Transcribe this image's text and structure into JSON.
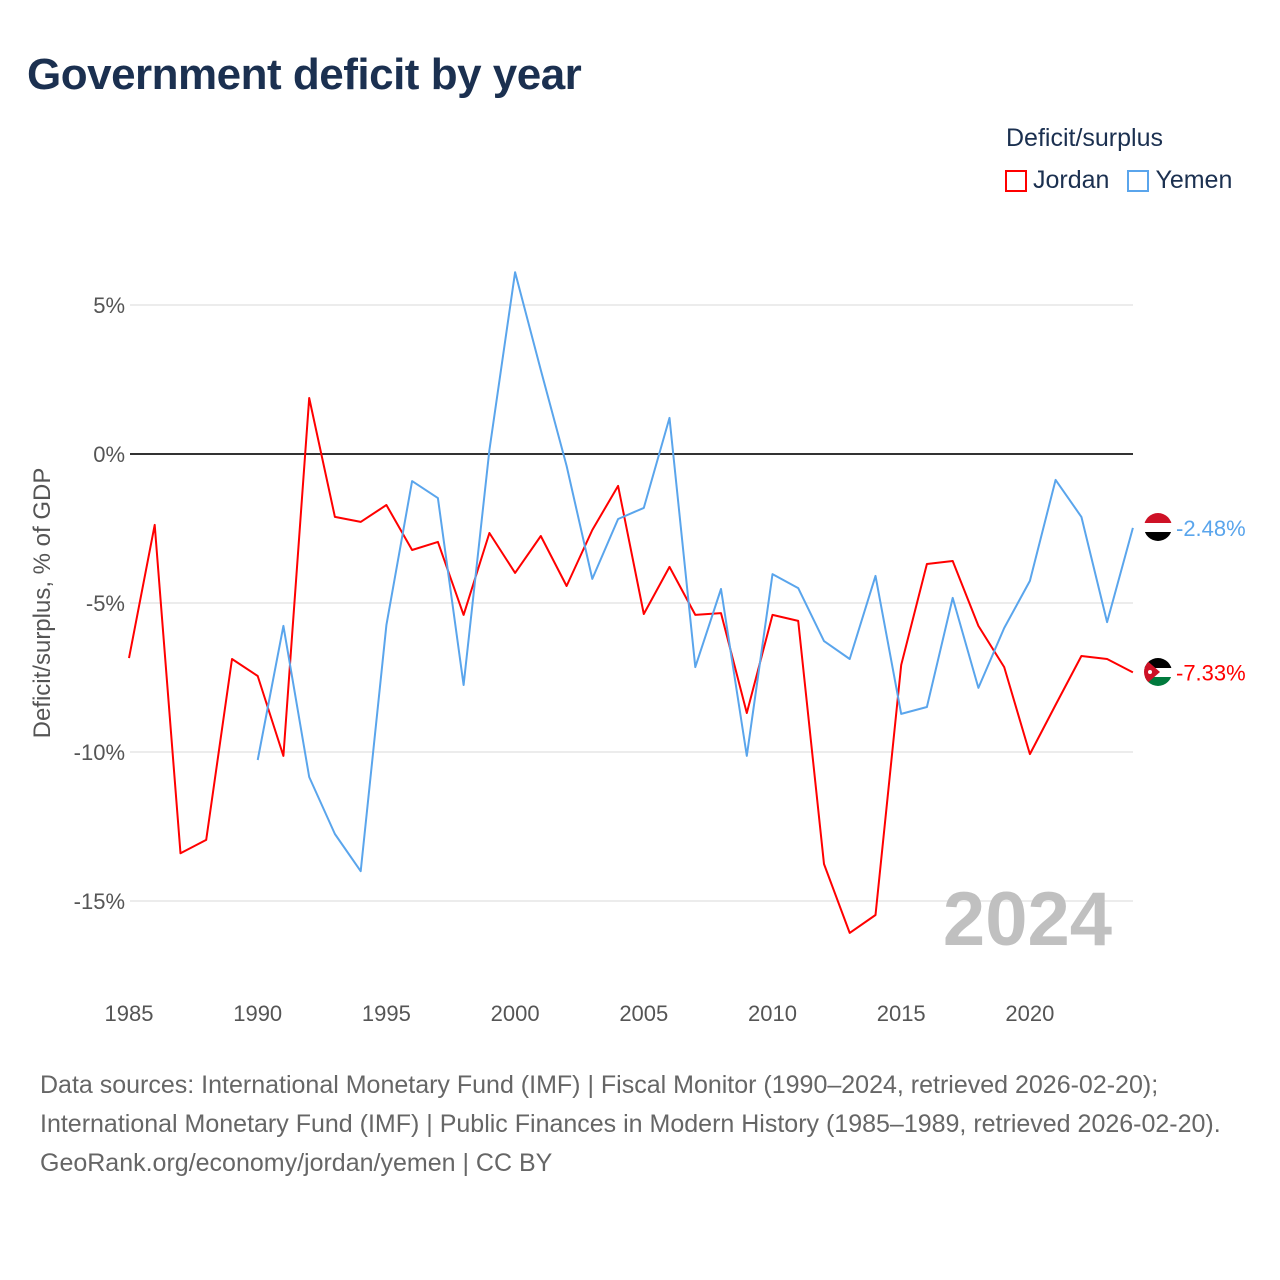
{
  "title": "Government deficit by year",
  "legend": {
    "title": "Deficit/surplus",
    "items": [
      {
        "name": "Jordan",
        "color": "#ff0000"
      },
      {
        "name": "Yemen",
        "color": "#5aa5ec"
      }
    ]
  },
  "watermark_year": "2024",
  "footer": {
    "sources": "Data sources: International Monetary Fund (IMF) | Fiscal Monitor (1990–2024, retrieved 2026-02-20); International Monetary Fund (IMF) | Public Finances in Modern History (1985–1989, retrieved 2026-02-20).",
    "credit": "GeoRank.org/economy/jordan/yemen | CC BY"
  },
  "chart_data": {
    "type": "line",
    "title": "Government deficit by year",
    "xlabel": "",
    "ylabel": "Deficit/surplus, % of GDP",
    "xlim": [
      1985,
      2024
    ],
    "ylim": [
      -17,
      6.5
    ],
    "x_ticks": [
      1985,
      1990,
      1995,
      2000,
      2005,
      2010,
      2015,
      2020
    ],
    "y_ticks": [
      {
        "v": 5,
        "label": "5%"
      },
      {
        "v": 0,
        "label": "0%"
      },
      {
        "v": -5,
        "label": "-5%"
      },
      {
        "v": -10,
        "label": "-10%"
      },
      {
        "v": -15,
        "label": "-15%"
      }
    ],
    "grid": true,
    "legend_position": "top-right",
    "series": [
      {
        "name": "Jordan",
        "color": "#ff0000",
        "end_label": "-7.33%",
        "x_start": 1985,
        "values": [
          -6.85,
          -2.38,
          -13.4,
          -12.95,
          -6.88,
          -7.45,
          -10.13,
          1.88,
          -2.11,
          -2.28,
          -1.71,
          -3.22,
          -2.95,
          -5.4,
          -2.65,
          -3.99,
          -2.75,
          -4.43,
          -2.55,
          -1.07,
          -5.37,
          -3.79,
          -5.4,
          -5.34,
          -8.69,
          -5.4,
          -5.6,
          -13.76,
          -16.07,
          -15.47,
          -7.08,
          -3.69,
          -3.59,
          -5.77,
          -7.15,
          -10.07,
          -8.42,
          -6.78,
          -6.88,
          -7.33
        ]
      },
      {
        "name": "Yemen",
        "color": "#5aa5ec",
        "end_label": "-2.48%",
        "x_start": 1990,
        "values": [
          -10.27,
          -5.77,
          -10.84,
          -12.75,
          -14.0,
          -5.74,
          -0.91,
          -1.48,
          -7.75,
          0.13,
          6.1,
          2.82,
          -0.4,
          -4.19,
          -2.18,
          -1.81,
          1.21,
          -7.15,
          -4.53,
          -10.13,
          -4.03,
          -4.5,
          -6.28,
          -6.88,
          -4.09,
          -8.72,
          -8.49,
          -4.83,
          -7.85,
          -5.84,
          -4.26,
          -0.87,
          -2.11,
          -5.64,
          -2.48
        ]
      }
    ]
  }
}
